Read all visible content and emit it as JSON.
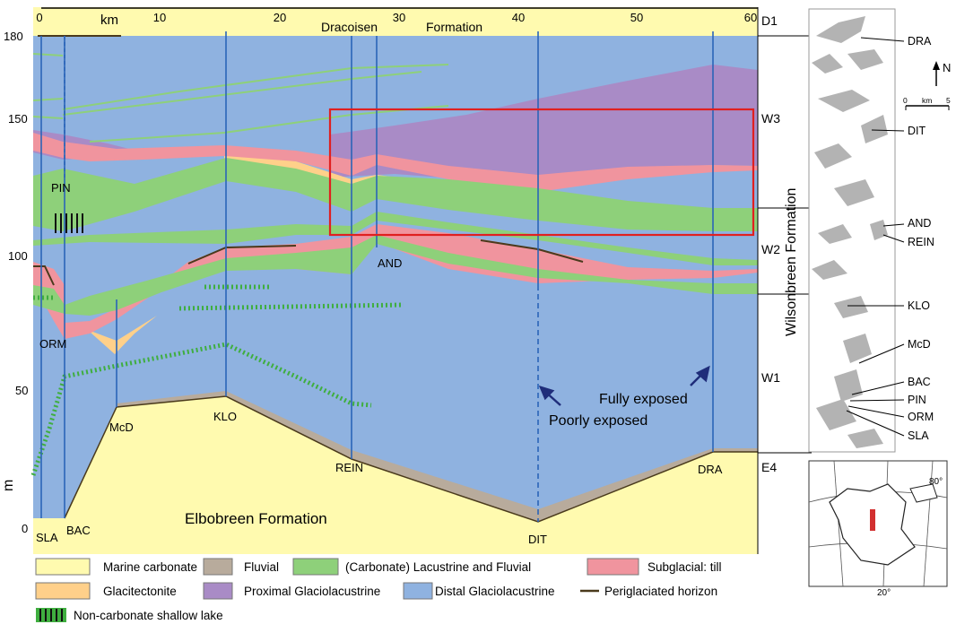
{
  "panel": {
    "km_label": "km",
    "km_ticks": [
      "0",
      "10",
      "20",
      "30",
      "40",
      "50",
      "60"
    ],
    "m_ticks": [
      "180",
      "150",
      "100",
      "50",
      "0"
    ],
    "m_label": "m",
    "top_units": [
      "Dracoisen",
      "Formation"
    ],
    "unit_labels": [
      "D1",
      "W3",
      "W2",
      "W1",
      "E4"
    ],
    "formation_label": "Wilsonbreen Formation",
    "base_label": "Elbobreen Formation",
    "section_labels": {
      "sla": "SLA",
      "bac": "BAC",
      "orm": "ORM",
      "pin": "PIN",
      "mcd": "McD",
      "klo": "KLO",
      "rein": "REIN",
      "and": "AND",
      "dit": "DIT",
      "dra": "DRA"
    },
    "notes": {
      "poorly": "Poorly exposed",
      "fully": "Fully exposed"
    }
  },
  "legend": [
    {
      "label": "Marine carbonate",
      "color": "#fffaaf"
    },
    {
      "label": "Fluvial",
      "color": "#b8ab9c"
    },
    {
      "label": "(Carbonate) Lacustrine and Fluvial",
      "color": "#8ed07a"
    },
    {
      "label": "Subglacial: till",
      "color": "#f0949e"
    },
    {
      "label": "Glacitectonite",
      "color": "#ffd08a"
    },
    {
      "label": "Proximal Glaciolacustrine",
      "color": "#a98bc6"
    },
    {
      "label": "Distal Glaciolacustrine",
      "color": "#8fb2e0"
    },
    {
      "label": "Periglaciated horizon",
      "color": "#4a3a1c"
    },
    {
      "label": "Non-carbonate shallow lake",
      "color": "#3fae3f"
    }
  ],
  "map": {
    "labels": [
      "DRA",
      "DIT",
      "AND",
      "REIN",
      "KLO",
      "McD",
      "BAC",
      "PIN",
      "ORM",
      "SLA"
    ],
    "north": "N",
    "scale_ticks": [
      "0",
      "km",
      "5"
    ],
    "inset_lat": "80°",
    "inset_lon": "20°"
  },
  "colors": {
    "distal": "#8fb2e0",
    "proximal": "#a98bc6",
    "till": "#f0949e",
    "lacustrine": "#8ed07a",
    "glacitectonite": "#ffd08a",
    "marine": "#fffaaf",
    "fluvial": "#b8ab9c",
    "highlight": "#e02020",
    "section_line": "#2a64b8"
  }
}
